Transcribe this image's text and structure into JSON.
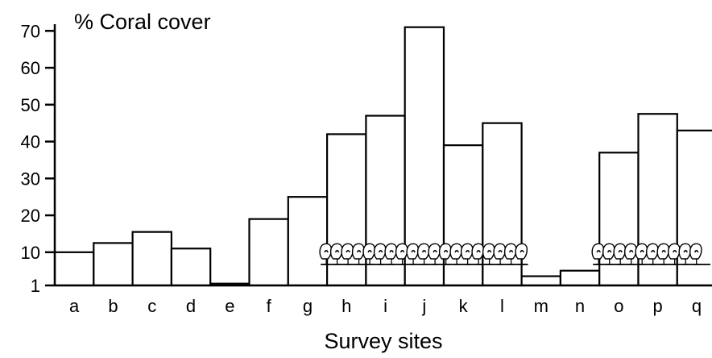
{
  "chart_data": {
    "type": "bar",
    "title": "% Coral cover",
    "xlabel": "Survey sites",
    "ylabel": "",
    "categories": [
      "a",
      "b",
      "c",
      "d",
      "e",
      "f",
      "g",
      "h",
      "i",
      "j",
      "k",
      "l",
      "m",
      "n",
      "o",
      "p",
      "q"
    ],
    "values": [
      10,
      12.5,
      15.5,
      11,
      1.5,
      19,
      25,
      42,
      47,
      71,
      39,
      45,
      3.5,
      5,
      37,
      47.5,
      43
    ],
    "ylim": [
      1,
      74
    ],
    "yticks": [
      1,
      10,
      20,
      30,
      40,
      50,
      60,
      70
    ],
    "grid": false,
    "legend": "none",
    "annotations": {
      "coral_reef_symbol_groups": [
        {
          "from": "h",
          "to": "l"
        },
        {
          "from": "o",
          "to": "q"
        }
      ]
    }
  }
}
